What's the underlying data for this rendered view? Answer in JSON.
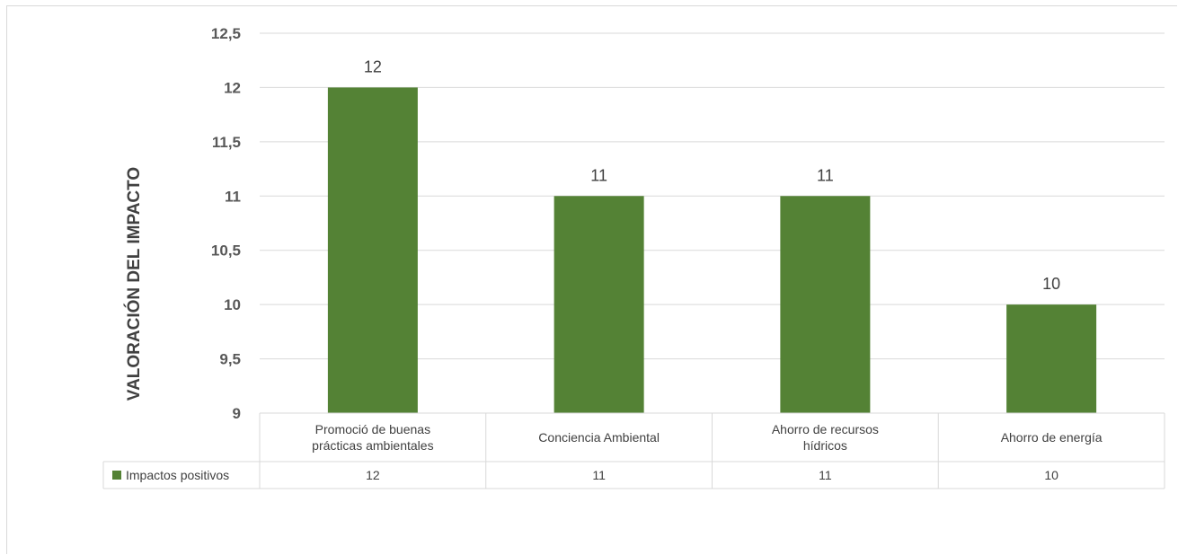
{
  "chart_data": {
    "type": "bar",
    "title": "",
    "xlabel": "",
    "ylabel": "VALORACIÓN DEL IMPACTO",
    "ylim": [
      9,
      12.5
    ],
    "yticks": [
      "9",
      "9,5",
      "10",
      "10,5",
      "11",
      "11,5",
      "12",
      "12,5"
    ],
    "categories": [
      [
        "Promoció de buenas",
        "prácticas ambientales"
      ],
      [
        "Conciencia Ambiental"
      ],
      [
        "Ahorro de recursos",
        "hídricos"
      ],
      [
        "Ahorro de energía"
      ]
    ],
    "series": [
      {
        "name": "Impactos positivos",
        "values": [
          12,
          11,
          11,
          10
        ],
        "labels": [
          "12",
          "11",
          "11",
          "10"
        ],
        "color": "#548235"
      }
    ],
    "grid": true,
    "legend": "data-table"
  }
}
